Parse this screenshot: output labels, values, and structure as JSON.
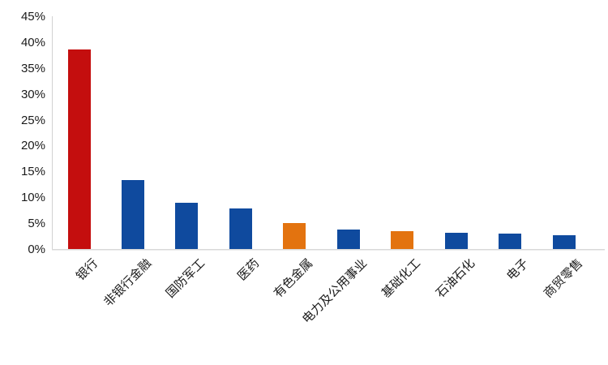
{
  "chart_data": {
    "type": "bar",
    "title": "",
    "xlabel": "",
    "ylabel": "",
    "categories": [
      "银行",
      "非银行金融",
      "国防军工",
      "医药",
      "有色金属",
      "电力及公用事业",
      "基础化工",
      "石油石化",
      "电子",
      "商贸零售"
    ],
    "values": [
      38.5,
      13.4,
      9.0,
      7.9,
      5.0,
      3.7,
      3.5,
      3.1,
      3.0,
      2.6
    ],
    "bar_colors": [
      "#c40e0e",
      "#0f4a9e",
      "#0f4a9e",
      "#0f4a9e",
      "#e3730f",
      "#0f4a9e",
      "#e3730f",
      "#0f4a9e",
      "#0f4a9e",
      "#0f4a9e"
    ],
    "ylim": [
      0,
      45
    ],
    "ytick_step": 5,
    "ytick_labels": [
      "0%",
      "5%",
      "10%",
      "15%",
      "20%",
      "25%",
      "30%",
      "35%",
      "40%",
      "45%"
    ],
    "grid": false,
    "legend": false,
    "colors": {
      "red": "#c40e0e",
      "blue": "#0f4a9e",
      "orange": "#e3730f",
      "axis": "#d9d9d9",
      "text": "#1a1a1a"
    }
  }
}
